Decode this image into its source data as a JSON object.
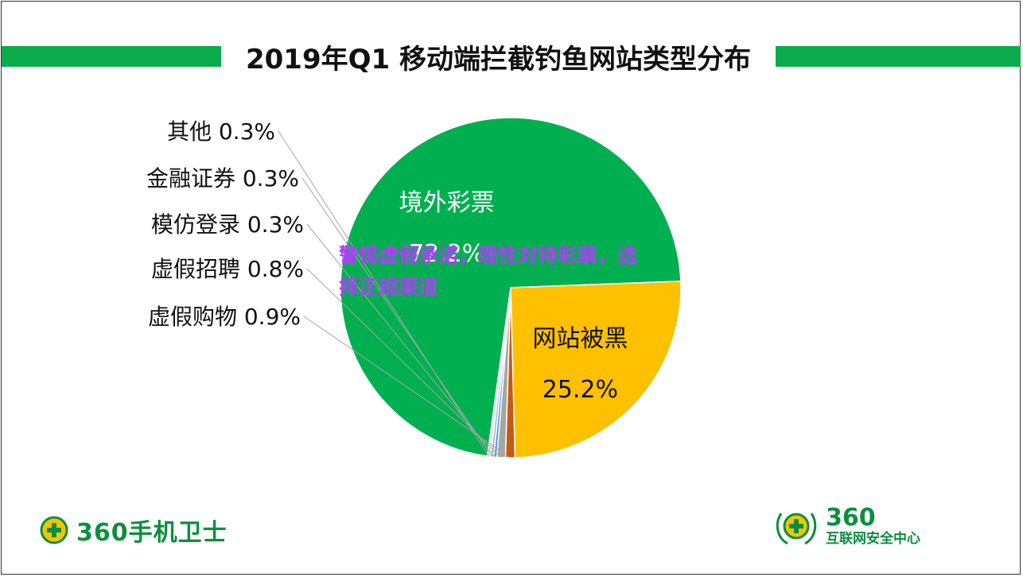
{
  "chart_data": {
    "type": "pie",
    "title": "2019年Q1 移动端拦截钓鱼网站类型分布",
    "slices": [
      {
        "label": "境外彩票",
        "value": 72.2,
        "display": "72.2%",
        "color": "#00b050"
      },
      {
        "label": "网站被黑",
        "value": 25.2,
        "display": "25.2%",
        "color": "#ffc000"
      },
      {
        "label": "虚假购物",
        "value": 0.9,
        "display": "0.9%",
        "color": "#c55a11"
      },
      {
        "label": "虚假招聘",
        "value": 0.8,
        "display": "0.8%",
        "color": "#a5a5a5"
      },
      {
        "label": "模仿登录",
        "value": 0.3,
        "display": "0.3%",
        "color": "#5b9bd5"
      },
      {
        "label": "金融证券",
        "value": 0.3,
        "display": "0.3%",
        "color": "#9dc3e6"
      },
      {
        "label": "其他",
        "value": 0.3,
        "display": "0.3%",
        "color": "#e2f0d9"
      }
    ],
    "legend": "none"
  },
  "overlay": {
    "line1": "警惕虚假承诺，理性对待彩票，选",
    "line2": "择正规渠道"
  },
  "footer": {
    "left_brand": "360手机卫士",
    "right_number": "360",
    "right_sub": "互联网安全中心"
  },
  "colors": {
    "band": "#0bac4b",
    "overlay_text": "#b23cff",
    "brand_green": "#0b8f3e"
  }
}
